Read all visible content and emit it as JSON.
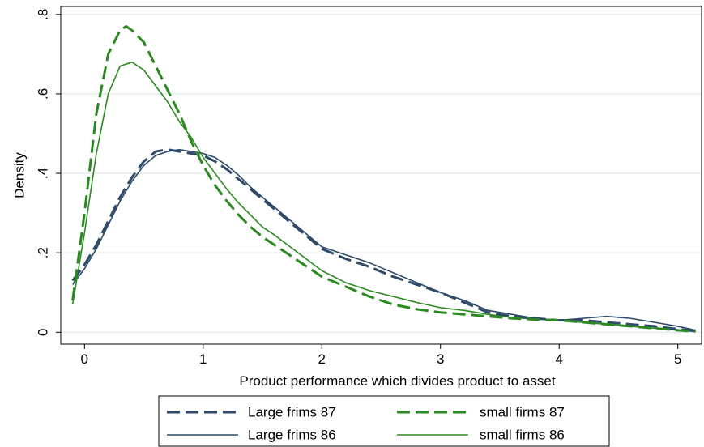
{
  "chart_data": {
    "type": "line",
    "title": "",
    "xlabel": "Product performance which divides product to asset",
    "ylabel": "Density",
    "xlim": [
      -0.2,
      5.2
    ],
    "ylim": [
      -0.03,
      0.82
    ],
    "xticks": [
      0,
      1,
      2,
      3,
      4,
      5
    ],
    "xtick_labels": [
      "0",
      "1",
      "2",
      "3",
      "4",
      "5"
    ],
    "yticks": [
      0,
      0.2,
      0.4,
      0.6,
      0.8
    ],
    "ytick_labels": [
      "0",
      ".2",
      ".4",
      ".6",
      ".8"
    ],
    "grid": "horizontal",
    "legend_position": "bottom",
    "series": [
      {
        "name": "Large frims 87",
        "color": "#2e4a68",
        "dash": "dashed",
        "x": [
          -0.1,
          0.0,
          0.1,
          0.2,
          0.3,
          0.4,
          0.5,
          0.6,
          0.7,
          0.8,
          0.9,
          1.0,
          1.1,
          1.2,
          1.3,
          1.4,
          1.5,
          1.6,
          1.7,
          1.8,
          1.9,
          2.0,
          2.2,
          2.4,
          2.6,
          2.8,
          3.0,
          3.2,
          3.4,
          3.6,
          3.8,
          4.0,
          4.2,
          4.4,
          4.6,
          4.8,
          5.0,
          5.15
        ],
        "y": [
          0.13,
          0.17,
          0.22,
          0.28,
          0.34,
          0.39,
          0.43,
          0.455,
          0.46,
          0.455,
          0.45,
          0.445,
          0.43,
          0.41,
          0.385,
          0.36,
          0.335,
          0.31,
          0.285,
          0.26,
          0.235,
          0.21,
          0.185,
          0.165,
          0.14,
          0.12,
          0.1,
          0.075,
          0.05,
          0.04,
          0.035,
          0.03,
          0.03,
          0.025,
          0.02,
          0.015,
          0.008,
          0.003
        ]
      },
      {
        "name": "small firms 87",
        "color": "#2a8a1f",
        "dash": "dashed",
        "x": [
          -0.1,
          0.0,
          0.1,
          0.2,
          0.3,
          0.35,
          0.4,
          0.5,
          0.6,
          0.7,
          0.8,
          0.9,
          1.0,
          1.1,
          1.2,
          1.3,
          1.4,
          1.5,
          1.6,
          1.8,
          2.0,
          2.2,
          2.4,
          2.6,
          2.8,
          3.0,
          3.2,
          3.4,
          3.6,
          3.8,
          4.0,
          4.2,
          4.4,
          4.6,
          4.8,
          5.0,
          5.15
        ],
        "y": [
          0.08,
          0.3,
          0.55,
          0.7,
          0.76,
          0.77,
          0.76,
          0.73,
          0.67,
          0.61,
          0.55,
          0.48,
          0.42,
          0.37,
          0.33,
          0.295,
          0.265,
          0.24,
          0.22,
          0.18,
          0.14,
          0.115,
          0.09,
          0.07,
          0.058,
          0.05,
          0.045,
          0.04,
          0.035,
          0.032,
          0.03,
          0.025,
          0.02,
          0.015,
          0.01,
          0.005,
          0.002
        ]
      },
      {
        "name": "Large frims 86",
        "color": "#2e4a68",
        "dash": "solid",
        "x": [
          -0.1,
          0.0,
          0.1,
          0.2,
          0.3,
          0.4,
          0.5,
          0.6,
          0.7,
          0.8,
          0.9,
          1.0,
          1.1,
          1.2,
          1.3,
          1.4,
          1.5,
          1.6,
          1.7,
          1.8,
          1.9,
          2.0,
          2.2,
          2.4,
          2.6,
          2.8,
          3.0,
          3.2,
          3.4,
          3.6,
          3.8,
          4.0,
          4.2,
          4.4,
          4.6,
          4.8,
          5.0,
          5.15
        ],
        "y": [
          0.12,
          0.16,
          0.21,
          0.27,
          0.33,
          0.38,
          0.42,
          0.445,
          0.455,
          0.46,
          0.455,
          0.45,
          0.44,
          0.42,
          0.395,
          0.365,
          0.34,
          0.315,
          0.29,
          0.265,
          0.24,
          0.215,
          0.195,
          0.175,
          0.15,
          0.125,
          0.1,
          0.08,
          0.055,
          0.045,
          0.035,
          0.03,
          0.035,
          0.04,
          0.035,
          0.025,
          0.015,
          0.005
        ]
      },
      {
        "name": "small firms 86",
        "color": "#2a8a1f",
        "dash": "solid",
        "x": [
          -0.1,
          0.0,
          0.1,
          0.2,
          0.3,
          0.4,
          0.5,
          0.6,
          0.7,
          0.8,
          0.9,
          1.0,
          1.1,
          1.2,
          1.3,
          1.4,
          1.5,
          1.6,
          1.8,
          2.0,
          2.2,
          2.4,
          2.6,
          2.8,
          3.0,
          3.2,
          3.4,
          3.6,
          3.8,
          4.0,
          4.2,
          4.4,
          4.6,
          4.8,
          5.0,
          5.15
        ],
        "y": [
          0.07,
          0.25,
          0.45,
          0.6,
          0.67,
          0.68,
          0.66,
          0.62,
          0.58,
          0.53,
          0.49,
          0.44,
          0.4,
          0.36,
          0.325,
          0.295,
          0.265,
          0.245,
          0.2,
          0.155,
          0.125,
          0.105,
          0.09,
          0.075,
          0.062,
          0.055,
          0.045,
          0.037,
          0.033,
          0.03,
          0.025,
          0.02,
          0.015,
          0.01,
          0.005,
          0.002
        ]
      }
    ]
  }
}
